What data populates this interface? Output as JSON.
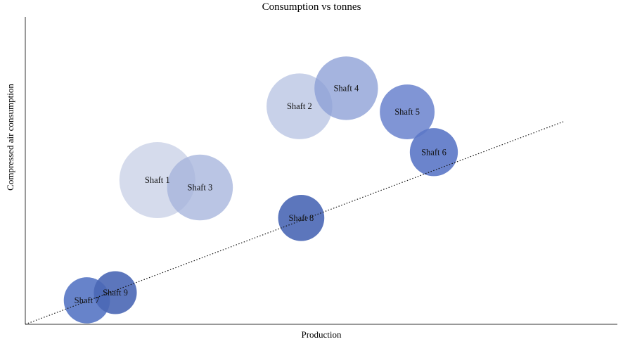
{
  "chart_data": {
    "type": "bubble",
    "title": "Consumption vs tonnes",
    "xlabel": "Production",
    "ylabel": "Compressed air consumption",
    "xlim": [
      0,
      100
    ],
    "ylim": [
      0,
      100
    ],
    "grid": false,
    "legend": "none",
    "trendline": {
      "style": "dotted",
      "x": [
        0,
        91
      ],
      "y": [
        0,
        66
      ]
    },
    "points": [
      {
        "name": "Shaft 1",
        "x": 22.3,
        "y": 46.9,
        "size": 100,
        "color": "#c7cfe6",
        "opacity": 0.75
      },
      {
        "name": "Shaft 3",
        "x": 29.5,
        "y": 44.5,
        "size": 75,
        "color": "#a3b1db",
        "opacity": 0.75
      },
      {
        "name": "Shaft 2",
        "x": 46.3,
        "y": 70.9,
        "size": 75,
        "color": "#bac6e3",
        "opacity": 0.8
      },
      {
        "name": "Shaft 4",
        "x": 54.2,
        "y": 76.8,
        "size": 70,
        "color": "#8c9fd6",
        "opacity": 0.78
      },
      {
        "name": "Shaft 5",
        "x": 64.5,
        "y": 69.1,
        "size": 52,
        "color": "#6e86cf",
        "opacity": 0.88
      },
      {
        "name": "Shaft 6",
        "x": 69.0,
        "y": 56.0,
        "size": 40,
        "color": "#5b77c7",
        "opacity": 0.9
      },
      {
        "name": "Shaft 8",
        "x": 46.6,
        "y": 34.6,
        "size": 37,
        "color": "#4a67b5",
        "opacity": 0.9
      },
      {
        "name": "Shaft 7",
        "x": 10.4,
        "y": 7.8,
        "size": 37,
        "color": "#5776c4",
        "opacity": 0.9
      },
      {
        "name": "Shaft 9",
        "x": 15.2,
        "y": 10.3,
        "size": 32,
        "color": "#4a67b5",
        "opacity": 0.9
      }
    ]
  }
}
